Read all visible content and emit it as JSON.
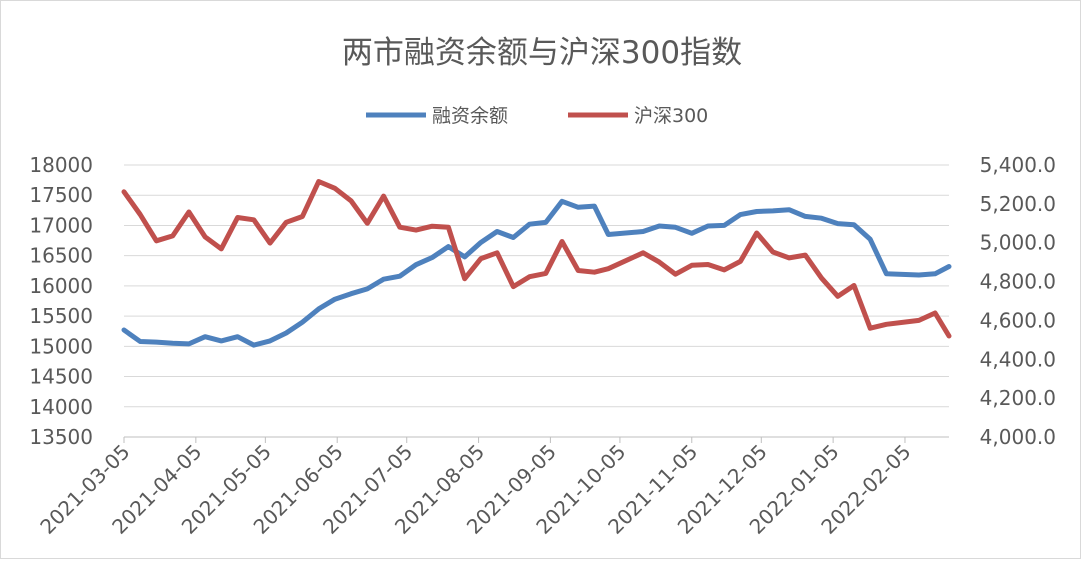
{
  "chart_data": {
    "type": "line",
    "title": "两市融资余额与沪深300指数",
    "legend_position": "top-center",
    "grid": true,
    "x_tick_labels": [
      "2021-03-05",
      "2021-04-05",
      "2021-05-05",
      "2021-06-05",
      "2021-07-05",
      "2021-08-05",
      "2021-09-05",
      "2021-10-05",
      "2021-11-05",
      "2021-12-05",
      "2022-01-05",
      "2022-02-05"
    ],
    "x_range": [
      "2021-03-05",
      "2022-02-24"
    ],
    "y_left": {
      "ylim": [
        13500,
        18000
      ],
      "ticks": [
        "13500",
        "14000",
        "14500",
        "15000",
        "15500",
        "16000",
        "16500",
        "17000",
        "17500",
        "18000"
      ]
    },
    "y_right": {
      "ylim": [
        4000,
        5400
      ],
      "ticks": [
        "4,000.0",
        "4,200.0",
        "4,400.0",
        "4,600.0",
        "4,800.0",
        "5,000.0",
        "5,200.0",
        "5,400.0"
      ]
    },
    "series": [
      {
        "name": "融资余额",
        "axis": "left",
        "color": "#4e81bd",
        "x": [
          "2021-03-05",
          "2021-03-12",
          "2021-03-19",
          "2021-03-26",
          "2021-04-02",
          "2021-04-09",
          "2021-04-16",
          "2021-04-23",
          "2021-04-30",
          "2021-05-07",
          "2021-05-14",
          "2021-05-21",
          "2021-05-28",
          "2021-06-04",
          "2021-06-11",
          "2021-06-18",
          "2021-06-25",
          "2021-07-02",
          "2021-07-09",
          "2021-07-16",
          "2021-07-23",
          "2021-07-30",
          "2021-08-06",
          "2021-08-13",
          "2021-08-20",
          "2021-08-27",
          "2021-09-03",
          "2021-09-10",
          "2021-09-17",
          "2021-09-24",
          "2021-09-30",
          "2021-10-15",
          "2021-10-22",
          "2021-10-29",
          "2021-11-05",
          "2021-11-12",
          "2021-11-19",
          "2021-11-26",
          "2021-12-03",
          "2021-12-10",
          "2021-12-17",
          "2021-12-24",
          "2021-12-31",
          "2022-01-07",
          "2022-01-14",
          "2022-01-21",
          "2022-01-28",
          "2022-02-11",
          "2022-02-18",
          "2022-02-24"
        ],
        "values": [
          15270,
          15080,
          15070,
          15050,
          15040,
          15160,
          15090,
          15160,
          15020,
          15090,
          15220,
          15400,
          15620,
          15780,
          15870,
          15950,
          16110,
          16160,
          16350,
          16470,
          16650,
          16480,
          16720,
          16900,
          16800,
          17020,
          17050,
          17400,
          17300,
          17320,
          16850,
          16900,
          16990,
          16970,
          16870,
          16990,
          17000,
          17180,
          17230,
          17240,
          17260,
          17150,
          17120,
          17030,
          17010,
          16770,
          16200,
          16180,
          16200,
          16320
        ]
      },
      {
        "name": "沪深300",
        "axis": "right",
        "color": "#c0504d",
        "x": [
          "2021-03-05",
          "2021-03-12",
          "2021-03-19",
          "2021-03-26",
          "2021-04-02",
          "2021-04-09",
          "2021-04-16",
          "2021-04-23",
          "2021-04-30",
          "2021-05-07",
          "2021-05-14",
          "2021-05-21",
          "2021-05-28",
          "2021-06-04",
          "2021-06-11",
          "2021-06-18",
          "2021-06-25",
          "2021-07-02",
          "2021-07-09",
          "2021-07-16",
          "2021-07-23",
          "2021-07-30",
          "2021-08-06",
          "2021-08-13",
          "2021-08-20",
          "2021-08-27",
          "2021-09-03",
          "2021-09-10",
          "2021-09-17",
          "2021-09-24",
          "2021-09-30",
          "2021-10-15",
          "2021-10-22",
          "2021-10-29",
          "2021-11-05",
          "2021-11-12",
          "2021-11-19",
          "2021-11-26",
          "2021-12-03",
          "2021-12-10",
          "2021-12-17",
          "2021-12-24",
          "2021-12-31",
          "2022-01-07",
          "2022-01-14",
          "2022-01-21",
          "2022-01-28",
          "2022-02-11",
          "2022-02-18",
          "2022-02-24"
        ],
        "values": [
          5262,
          5145,
          5010,
          5035,
          5158,
          5030,
          4968,
          5130,
          5118,
          4998,
          5105,
          5135,
          5315,
          5280,
          5215,
          5100,
          5240,
          5080,
          5065,
          5085,
          5080,
          4815,
          4918,
          4948,
          4774,
          4825,
          4842,
          5006,
          4857,
          4848,
          4866,
          4948,
          4900,
          4838,
          4884,
          4888,
          4860,
          4904,
          5050,
          4952,
          4922,
          4936,
          4818,
          4724,
          4780,
          4560,
          4580,
          4600,
          4638,
          4520
        ]
      }
    ]
  }
}
